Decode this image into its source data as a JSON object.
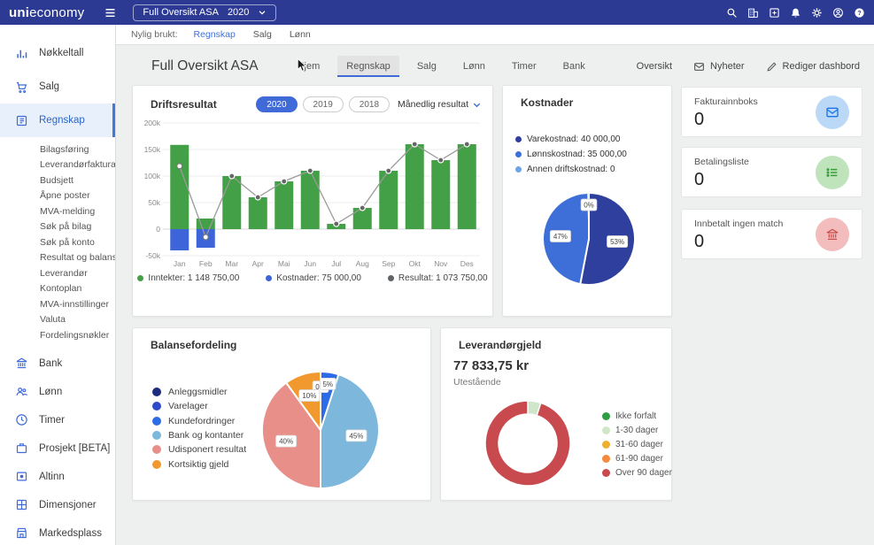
{
  "topbar": {
    "logo_bold": "uni",
    "logo_rest": "economy",
    "company_selector": {
      "name": "Full Oversikt ASA",
      "year": "2020"
    },
    "icons": [
      "search",
      "company",
      "add",
      "notifications",
      "settings",
      "account",
      "help"
    ]
  },
  "recent_bar": {
    "label": "Nylig brukt:",
    "links": [
      "Regnskap",
      "Salg",
      "Lønn"
    ],
    "active_link": "Regnskap"
  },
  "sidebar": {
    "items": [
      {
        "label": "Nøkkeltall",
        "icon": "bar-chart"
      },
      {
        "label": "Salg",
        "icon": "cart"
      },
      {
        "label": "Regnskap",
        "icon": "ledger",
        "active": true,
        "children": [
          "Bilagsføring",
          "Leverandørfaktura",
          "Budsjett",
          "Åpne poster",
          "MVA-melding",
          "Søk på bilag",
          "Søk på konto",
          "Resultat og balanse",
          "Leverandør",
          "Kontoplan",
          "MVA-innstillinger",
          "Valuta",
          "Fordelingsnøkler"
        ]
      },
      {
        "label": "Bank",
        "icon": "bank"
      },
      {
        "label": "Lønn",
        "icon": "people"
      },
      {
        "label": "Timer",
        "icon": "clock"
      },
      {
        "label": "Prosjekt [BETA]",
        "icon": "briefcase"
      },
      {
        "label": "Altinn",
        "icon": "altinn"
      },
      {
        "label": "Dimensjoner",
        "icon": "grid"
      },
      {
        "label": "Markedsplass",
        "icon": "store"
      }
    ]
  },
  "header": {
    "title": "Full Oversikt ASA",
    "tabs": [
      "Hjem",
      "Regnskap",
      "Salg",
      "Lønn",
      "Timer",
      "Bank"
    ],
    "active_tab": "Regnskap",
    "actions": [
      {
        "label": "Oversikt",
        "icon": ""
      },
      {
        "label": "Nyheter",
        "icon": "mail"
      },
      {
        "label": "Rediger dashbord",
        "icon": "pencil"
      }
    ]
  },
  "quick_cards": [
    {
      "title": "Fakturainnboks",
      "count": "0",
      "icon": "mail",
      "icon_color": "#1a73e8",
      "circle_bg": "#bcd8f7"
    },
    {
      "title": "Betalingsliste",
      "count": "0",
      "icon": "list",
      "icon_color": "#3c9e3f",
      "circle_bg": "#bfe3bb"
    },
    {
      "title": "Innbetalt ingen match",
      "count": "0",
      "icon": "bank",
      "icon_color": "#cc4b4b",
      "circle_bg": "#f3bdbd"
    }
  ],
  "chart_data": [
    {
      "id": "driftsresultat",
      "type": "bar",
      "title": "Driftsresultat",
      "year_filters": [
        "2020",
        "2019",
        "2018"
      ],
      "active_year": "2020",
      "period_selector": "Månedlig resultat",
      "categories": [
        "Jan",
        "Feb",
        "Mar",
        "Apr",
        "Mai",
        "Jun",
        "Jul",
        "Aug",
        "Sep",
        "Okt",
        "Nov",
        "Des"
      ],
      "series": [
        {
          "name": "Inntekter",
          "type": "bar",
          "color": "#43a047",
          "values": [
            158750,
            20000,
            100000,
            60000,
            90000,
            110000,
            10000,
            40000,
            110000,
            160000,
            130000,
            160000
          ]
        },
        {
          "name": "Kostnader",
          "type": "bar",
          "color": "#3e64d9",
          "values": [
            -40000,
            -35000,
            0,
            0,
            0,
            0,
            0,
            0,
            0,
            0,
            0,
            0
          ]
        },
        {
          "name": "Resultat",
          "type": "line",
          "color": "#9a9a9a",
          "values": [
            118750,
            -15000,
            100000,
            60000,
            90000,
            110000,
            10000,
            40000,
            110000,
            160000,
            130000,
            160000
          ]
        }
      ],
      "ylim": [
        -50000,
        200000
      ],
      "yticks": [
        200000,
        150000,
        100000,
        50000,
        0,
        -50000
      ],
      "ytick_labels": [
        "200k",
        "150k",
        "100k",
        "50k",
        "0",
        "-50k"
      ],
      "grid": true,
      "legend_position": "bottom",
      "legend": [
        {
          "label": "Inntekter: 1 148 750,00",
          "color": "#43a047"
        },
        {
          "label": "Kostnader: 75 000,00",
          "color": "#3e64d9"
        },
        {
          "label": "Resultat: 1 073 750,00",
          "color": "#5f6368"
        }
      ]
    },
    {
      "id": "kostnader",
      "type": "pie",
      "title": "Kostnader",
      "legend": [
        {
          "label": "Varekostnad: 40 000,00",
          "color": "#2e3f9e"
        },
        {
          "label": "Lønnskostnad: 35 000,00",
          "color": "#3e6fd9"
        },
        {
          "label": "Annen driftskostnad: 0",
          "color": "#6fa3e8"
        }
      ],
      "slices": [
        {
          "label": "Varekostnad",
          "pct": 53,
          "color": "#2e3f9e"
        },
        {
          "label": "Lønnskostnad",
          "pct": 47,
          "color": "#3e6fd9"
        },
        {
          "label": "Annen driftskostnad",
          "pct": 0,
          "color": "#6fa3e8",
          "show_zero_label": true,
          "sliver": true
        }
      ]
    },
    {
      "id": "balansefordeling",
      "type": "pie",
      "title": "Balansefordeling",
      "slices": [
        {
          "label": "Anleggsmidler",
          "pct": 0,
          "color": "#1d2b7d"
        },
        {
          "label": "Varelager",
          "pct": 0,
          "color": "#2b4bc8",
          "show_zero_label": true
        },
        {
          "label": "Kundefordringer",
          "pct": 5,
          "color": "#2e6be6"
        },
        {
          "label": "Bank og kontanter",
          "pct": 45,
          "color": "#7db8dc"
        },
        {
          "label": "Udisponert resultat",
          "pct": 40,
          "color": "#e88f8a"
        },
        {
          "label": "Kortsiktig gjeld",
          "pct": 10,
          "color": "#f1992e"
        }
      ]
    },
    {
      "id": "leverandorgjeld",
      "type": "donut",
      "title": "Leverandørgjeld",
      "amount": "77 833,75 kr",
      "amount_label": "Utestående",
      "slices": [
        {
          "label": "Ikke forfalt",
          "pct": 0,
          "color": "#2e9e44"
        },
        {
          "label": "1-30 dager",
          "pct": 5,
          "color": "#cfe7c8"
        },
        {
          "label": "31-60 dager",
          "pct": 0,
          "color": "#f0b02f"
        },
        {
          "label": "61-90 dager",
          "pct": 0,
          "color": "#f58a3c"
        },
        {
          "label": "Over 90 dager",
          "pct": 95,
          "color": "#c94a4e"
        }
      ]
    }
  ]
}
